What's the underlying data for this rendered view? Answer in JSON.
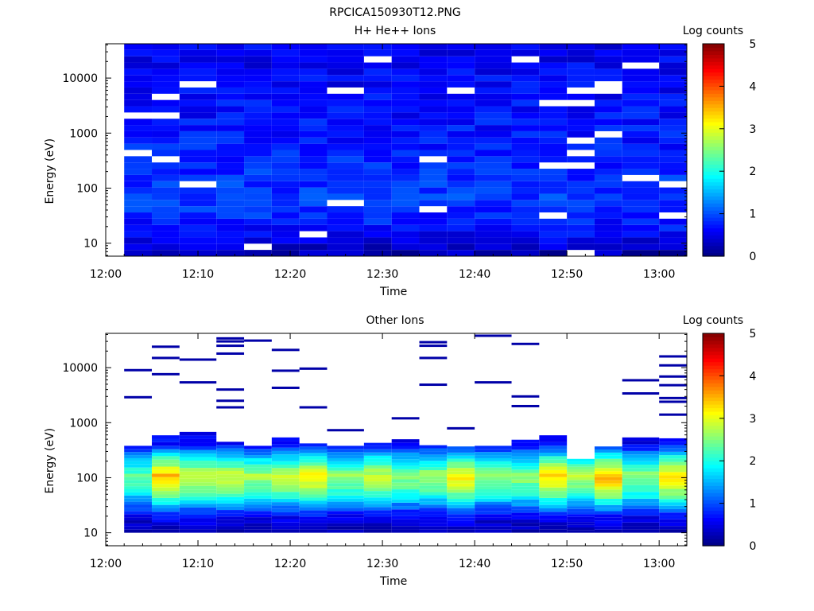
{
  "figure_title": "RPCICA150930T12.PNG",
  "chart_data": [
    {
      "type": "heatmap",
      "title": "H+ He++ Ions",
      "xlabel": "Time",
      "ylabel": "Energy (eV)",
      "x_ticks": [
        "12:00",
        "12:10",
        "12:20",
        "12:30",
        "12:40",
        "12:50",
        "13:00"
      ],
      "x_range": [
        "12:00",
        "13:03"
      ],
      "y_ticks": [
        10,
        100,
        1000,
        10000
      ],
      "y_range": [
        5.8,
        42000
      ],
      "y_scale": "log",
      "time_bins_start": [
        "12:02",
        "12:05",
        "12:08",
        "12:12",
        "12:15",
        "12:18",
        "12:21",
        "12:24",
        "12:28",
        "12:31",
        "12:34",
        "12:37",
        "12:40",
        "12:44",
        "12:47",
        "12:50",
        "12:53",
        "12:56",
        "13:00"
      ],
      "time_bins_end": [
        "12:05",
        "12:08",
        "12:12",
        "12:15",
        "12:18",
        "12:21",
        "12:24",
        "12:28",
        "12:31",
        "12:34",
        "12:37",
        "12:40",
        "12:44",
        "12:47",
        "12:50",
        "12:53",
        "12:56",
        "13:00",
        "13:03"
      ],
      "profile": {
        "energy_eV": [
          6,
          10,
          20,
          40,
          80,
          150,
          300,
          600,
          1500,
          4000,
          10000,
          42000
        ],
        "log_counts": [
          0.2,
          0.5,
          0.7,
          0.85,
          0.9,
          0.85,
          0.8,
          0.75,
          0.7,
          0.65,
          0.6,
          0.55
        ]
      },
      "colorbar": {
        "label": "Log counts",
        "min": 0,
        "max": 5,
        "ticks": [
          0,
          1,
          2,
          3,
          4,
          5
        ]
      }
    },
    {
      "type": "heatmap",
      "title": "Other Ions",
      "xlabel": "Time",
      "ylabel": "Energy (eV)",
      "x_ticks": [
        "12:00",
        "12:10",
        "12:20",
        "12:30",
        "12:40",
        "12:50",
        "13:00"
      ],
      "x_range": [
        "12:00",
        "13:03"
      ],
      "y_ticks": [
        10,
        100,
        1000,
        10000
      ],
      "y_range": [
        5.8,
        42000
      ],
      "y_scale": "log",
      "time_bins_start": [
        "12:02",
        "12:05",
        "12:08",
        "12:12",
        "12:15",
        "12:18",
        "12:21",
        "12:24",
        "12:28",
        "12:31",
        "12:34",
        "12:37",
        "12:40",
        "12:44",
        "12:47",
        "12:50",
        "12:53",
        "12:56",
        "13:00"
      ],
      "time_bins_end": [
        "12:05",
        "12:08",
        "12:12",
        "12:15",
        "12:18",
        "12:21",
        "12:24",
        "12:28",
        "12:31",
        "12:34",
        "12:37",
        "12:40",
        "12:44",
        "12:47",
        "12:50",
        "12:53",
        "12:56",
        "13:00",
        "13:03"
      ],
      "profile": {
        "energy_eV": [
          10,
          20,
          30,
          50,
          80,
          110,
          160,
          250,
          400
        ],
        "log_counts": [
          0.2,
          0.6,
          1.3,
          2.2,
          2.7,
          2.9,
          2.3,
          1.6,
          0.6
        ]
      },
      "band_top_eV": [
        380,
        590,
        680,
        450,
        380,
        540,
        420,
        380,
        430,
        500,
        390,
        370,
        380,
        490,
        590,
        220,
        370,
        540,
        520
      ],
      "peak_log_counts": [
        2.3,
        3.5,
        3.0,
        2.9,
        2.7,
        2.9,
        3.2,
        2.6,
        2.9,
        2.6,
        2.7,
        3.2,
        2.6,
        2.6,
        3.3,
        2.8,
        3.5,
        2.6,
        3.3
      ],
      "sparse_hits_eV": [
        [
          9000,
          2900
        ],
        [
          24000,
          15000,
          7600
        ],
        [
          14000,
          5400
        ],
        [
          34000,
          30000,
          25000,
          18000,
          4000,
          2500,
          1900
        ],
        [
          31000
        ],
        [
          21000,
          8800,
          4300
        ],
        [
          9600,
          1900
        ],
        [
          730
        ],
        [],
        [
          1200
        ],
        [
          29000,
          25000,
          15000,
          4900
        ],
        [
          790
        ],
        [
          38000,
          5400
        ],
        [
          27000,
          3000,
          2000
        ],
        [],
        [],
        [],
        [
          5900,
          3400
        ],
        [
          16000,
          11000,
          6900,
          4800,
          2800,
          2400,
          1400
        ]
      ],
      "colorbar": {
        "label": "Log counts",
        "min": 0,
        "max": 5,
        "ticks": [
          0,
          1,
          2,
          3,
          4,
          5
        ]
      }
    }
  ]
}
